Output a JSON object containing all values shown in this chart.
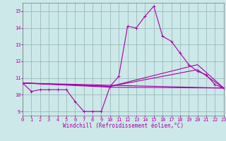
{
  "xlabel": "Windchill (Refroidissement éolien,°C)",
  "bg_color": "#cce8e8",
  "line_color": "#aa00aa",
  "grid_color": "#99bbbb",
  "main_line": {
    "x": [
      0,
      1,
      2,
      3,
      4,
      5,
      6,
      7,
      8,
      9,
      10,
      11,
      12,
      13,
      14,
      15,
      16,
      17,
      18,
      19,
      20,
      21,
      22,
      23
    ],
    "y": [
      10.7,
      10.2,
      10.3,
      10.3,
      10.3,
      10.3,
      9.6,
      9.0,
      9.0,
      9.0,
      10.5,
      11.1,
      14.1,
      14.0,
      14.7,
      15.3,
      13.5,
      13.2,
      12.5,
      11.8,
      11.4,
      11.2,
      10.6,
      10.4
    ]
  },
  "extra_lines": [
    {
      "x": [
        0,
        23
      ],
      "y": [
        10.7,
        10.4
      ]
    },
    {
      "x": [
        0,
        10,
        23
      ],
      "y": [
        10.7,
        10.45,
        10.4
      ]
    },
    {
      "x": [
        0,
        10,
        20,
        23
      ],
      "y": [
        10.7,
        10.5,
        11.5,
        10.4
      ]
    },
    {
      "x": [
        0,
        10,
        20,
        23
      ],
      "y": [
        10.7,
        10.5,
        11.8,
        10.4
      ]
    }
  ],
  "xlim": [
    0,
    23
  ],
  "ylim": [
    8.75,
    15.5
  ],
  "xticks": [
    0,
    1,
    2,
    3,
    4,
    5,
    6,
    7,
    8,
    9,
    10,
    11,
    12,
    13,
    14,
    15,
    16,
    17,
    18,
    19,
    20,
    21,
    22,
    23
  ],
  "yticks": [
    9,
    10,
    11,
    12,
    13,
    14,
    15
  ],
  "tick_fontsize": 5.0,
  "xlabel_fontsize": 5.5,
  "lw_main": 0.8,
  "lw_extra": 0.8,
  "marker_size": 2.5,
  "marker_ew": 0.7
}
